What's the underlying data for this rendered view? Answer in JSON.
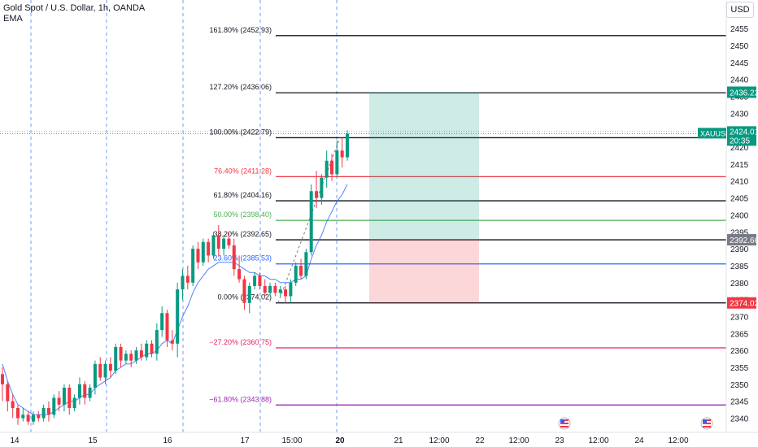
{
  "header": {
    "title": "Gold Spot / U.S. Dollar, 1h, OANDA",
    "indicator": "EMA",
    "currency_button": "USD"
  },
  "chart_data": {
    "type": "candlestick",
    "price_scale": {
      "range": [
        2338,
        2458
      ],
      "ticks": [
        2340,
        2345,
        2350,
        2355,
        2360,
        2365,
        2370,
        2375,
        2380,
        2385,
        2390,
        2395,
        2400,
        2405,
        2410,
        2415,
        2420,
        2425,
        2430,
        2435,
        2440,
        2445,
        2450,
        2455
      ]
    },
    "time_labels": [
      "14",
      "15",
      "16",
      "17",
      "15:00",
      "20",
      "21",
      "12:00",
      "22",
      "12:00",
      "23",
      "12:00",
      "24",
      "12:00"
    ],
    "symbol_tag": {
      "label": "XAUUSD",
      "price": "2424.01",
      "countdown": "20:35",
      "color": "#089981"
    },
    "price_tags": [
      {
        "price": "2436.22",
        "value": 2436.22,
        "color": "#089981"
      },
      {
        "price": "2392.66",
        "value": 2392.66,
        "color": "#787b86"
      },
      {
        "price": "2374.02",
        "value": 2374.02,
        "color": "#f23645"
      }
    ],
    "fib_levels": [
      {
        "label": "161.80% (2452.93)",
        "value": 2452.93,
        "color": "#131722"
      },
      {
        "label": "127.20% (2436.06)",
        "value": 2436.06,
        "color": "#131722"
      },
      {
        "label": "100.00% (2422.79)",
        "value": 2422.79,
        "color": "#131722"
      },
      {
        "label": "76.40% (2411.28)",
        "value": 2411.28,
        "color": "#f23645"
      },
      {
        "label": "61.80% (2404.16)",
        "value": 2404.16,
        "color": "#131722"
      },
      {
        "label": "50.00% (2398.40)",
        "value": 2398.4,
        "color": "#4caf50"
      },
      {
        "label": "38.20% (2392.65)",
        "value": 2392.65,
        "color": "#131722"
      },
      {
        "label": "23.60% (2385.53)",
        "value": 2385.53,
        "color": "#2962ff"
      },
      {
        "label": "0.00% (2374.02)",
        "value": 2374.02,
        "color": "#131722"
      },
      {
        "label": "−27.20% (2360.75)",
        "value": 2360.75,
        "color": "#e91e63"
      },
      {
        "label": "−61.80% (2343.88)",
        "value": 2343.88,
        "color": "#9c27b0"
      }
    ],
    "position": {
      "entry": 2392.66,
      "target": 2436.22,
      "stop": 2374.02,
      "profit_color": "#089981",
      "loss_color": "#f23645"
    },
    "candles": [
      [
        2353,
        2355,
        2345,
        2350
      ],
      [
        2350,
        2351,
        2342,
        2345
      ],
      [
        2345,
        2347,
        2340,
        2343
      ],
      [
        2343,
        2344,
        2338,
        2340
      ],
      [
        2340,
        2343,
        2339,
        2341
      ],
      [
        2341,
        2342,
        2338,
        2339
      ],
      [
        2339,
        2342,
        2338,
        2341
      ],
      [
        2341,
        2342,
        2339,
        2340
      ],
      [
        2340,
        2344,
        2339,
        2343
      ],
      [
        2343,
        2345,
        2339,
        2341
      ],
      [
        2341,
        2347,
        2340,
        2346
      ],
      [
        2346,
        2348,
        2342,
        2344
      ],
      [
        2344,
        2350,
        2342,
        2349
      ],
      [
        2349,
        2350,
        2341,
        2343
      ],
      [
        2343,
        2347,
        2342,
        2346
      ],
      [
        2346,
        2352,
        2344,
        2350
      ],
      [
        2350,
        2351,
        2344,
        2346
      ],
      [
        2346,
        2350,
        2345,
        2349
      ],
      [
        2349,
        2357,
        2347,
        2356
      ],
      [
        2356,
        2358,
        2351,
        2352
      ],
      [
        2352,
        2357,
        2350,
        2356
      ],
      [
        2356,
        2358,
        2352,
        2354
      ],
      [
        2354,
        2362,
        2353,
        2361
      ],
      [
        2361,
        2362,
        2355,
        2357
      ],
      [
        2357,
        2360,
        2356,
        2359
      ],
      [
        2359,
        2360,
        2355,
        2357
      ],
      [
        2357,
        2361,
        2356,
        2360
      ],
      [
        2360,
        2362,
        2357,
        2358
      ],
      [
        2358,
        2363,
        2357,
        2362
      ],
      [
        2362,
        2363,
        2358,
        2359
      ],
      [
        2359,
        2368,
        2357,
        2366
      ],
      [
        2366,
        2373,
        2364,
        2371
      ],
      [
        2371,
        2372,
        2361,
        2363
      ],
      [
        2363,
        2366,
        2360,
        2362
      ],
      [
        2362,
        2380,
        2358,
        2378
      ],
      [
        2378,
        2384,
        2375,
        2382
      ],
      [
        2382,
        2385,
        2378,
        2380
      ],
      [
        2380,
        2391,
        2379,
        2390
      ],
      [
        2390,
        2392,
        2384,
        2386
      ],
      [
        2386,
        2393,
        2385,
        2392
      ],
      [
        2392,
        2393,
        2386,
        2388
      ],
      [
        2388,
        2395,
        2387,
        2394
      ],
      [
        2394,
        2397,
        2388,
        2390
      ],
      [
        2390,
        2394,
        2388,
        2393
      ],
      [
        2393,
        2395,
        2390,
        2391
      ],
      [
        2391,
        2393,
        2382,
        2384
      ],
      [
        2384,
        2388,
        2380,
        2381
      ],
      [
        2381,
        2382,
        2372,
        2374
      ],
      [
        2374,
        2380,
        2371,
        2379
      ],
      [
        2379,
        2383,
        2378,
        2382
      ],
      [
        2382,
        2383,
        2378,
        2379
      ],
      [
        2379,
        2381,
        2376,
        2377
      ],
      [
        2377,
        2380,
        2376,
        2379
      ],
      [
        2379,
        2380,
        2376,
        2377
      ],
      [
        2377,
        2379,
        2376,
        2378
      ],
      [
        2378,
        2379,
        2374,
        2376
      ],
      [
        2376,
        2381,
        2374,
        2380
      ],
      [
        2380,
        2386,
        2379,
        2385
      ],
      [
        2385,
        2387,
        2381,
        2382
      ],
      [
        2382,
        2390,
        2381,
        2389
      ],
      [
        2389,
        2409,
        2388,
        2407
      ],
      [
        2407,
        2413,
        2402,
        2405
      ],
      [
        2405,
        2412,
        2403,
        2411
      ],
      [
        2411,
        2419,
        2408,
        2416
      ],
      [
        2416,
        2418,
        2410,
        2412
      ],
      [
        2412,
        2422,
        2411,
        2419
      ],
      [
        2419,
        2423,
        2414,
        2417
      ],
      [
        2417,
        2425,
        2416,
        2424
      ]
    ],
    "ema": [
      2356,
      2351,
      2347,
      2344,
      2343,
      2342,
      2341,
      2341,
      2341,
      2341,
      2342,
      2343,
      2344,
      2345,
      2345,
      2346,
      2347,
      2347,
      2349,
      2350,
      2351,
      2352,
      2354,
      2355,
      2356,
      2356,
      2357,
      2358,
      2359,
      2359,
      2360,
      2362,
      2363,
      2362,
      2366,
      2370,
      2373,
      2377,
      2380,
      2382,
      2384,
      2385,
      2386,
      2386,
      2386,
      2386,
      2385,
      2384,
      2383,
      2383,
      2382,
      2382,
      2381,
      2381,
      2380,
      2380,
      2380,
      2381,
      2381,
      2382,
      2387,
      2391,
      2394,
      2398,
      2401,
      2404,
      2406,
      2409
    ]
  }
}
